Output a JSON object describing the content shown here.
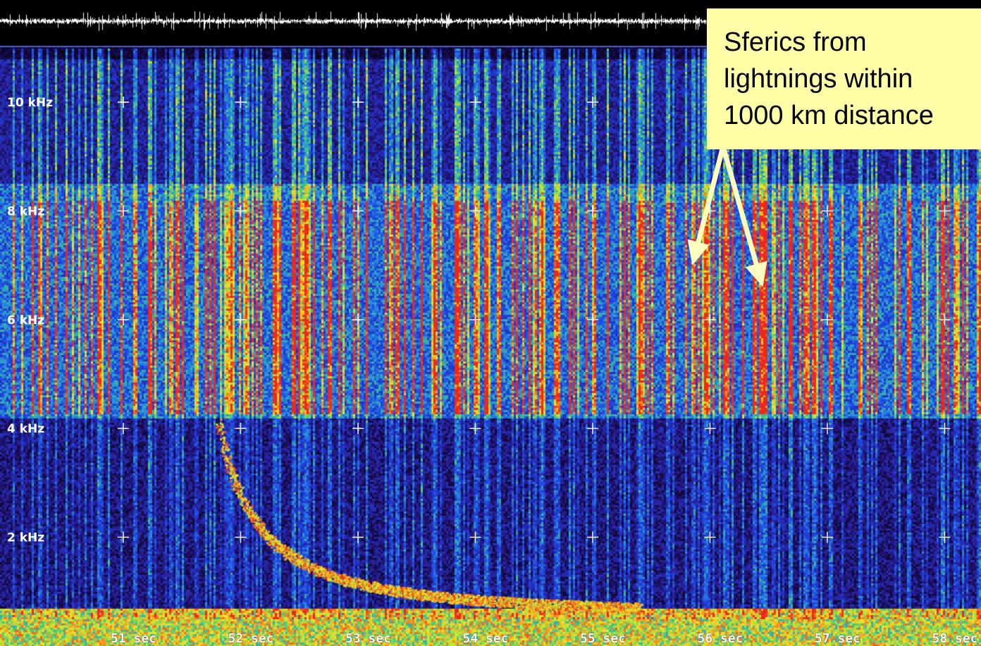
{
  "chart_data": {
    "type": "heatmap",
    "description_free": true,
    "y_ticks": [
      {
        "value": 10,
        "label": "10 kHz"
      },
      {
        "value": 8,
        "label": "8 kHz"
      },
      {
        "value": 6,
        "label": "6 kHz"
      },
      {
        "value": 4,
        "label": "4 kHz"
      },
      {
        "value": 2,
        "label": "2 kHz"
      }
    ],
    "x_ticks": [
      {
        "value": 51,
        "label": "51 sec"
      },
      {
        "value": 52,
        "label": "52 sec"
      },
      {
        "value": 53,
        "label": "53 sec"
      },
      {
        "value": 54,
        "label": "54 sec"
      },
      {
        "value": 55,
        "label": "55 sec"
      },
      {
        "value": 56,
        "label": "56 sec"
      },
      {
        "value": 57,
        "label": "57 sec"
      },
      {
        "value": 58,
        "label": "58 sec"
      }
    ],
    "xlim": [
      50,
      58.3
    ],
    "ylim": [
      0,
      11.6
    ],
    "grid": "plus-markers",
    "annotation": {
      "lines": [
        "Sferics from",
        "lightnings within",
        "1000 km distance"
      ],
      "arrow_targets": [
        {
          "time_sec": 55.85,
          "freq_khz": 7.0
        },
        {
          "time_sec": 56.45,
          "freq_khz": 6.6
        }
      ]
    },
    "colors": {
      "background": "#000000",
      "annotation_box": "#ffffa8",
      "arrow": "#ffffc0",
      "trace_line": "#6a7cff"
    }
  }
}
